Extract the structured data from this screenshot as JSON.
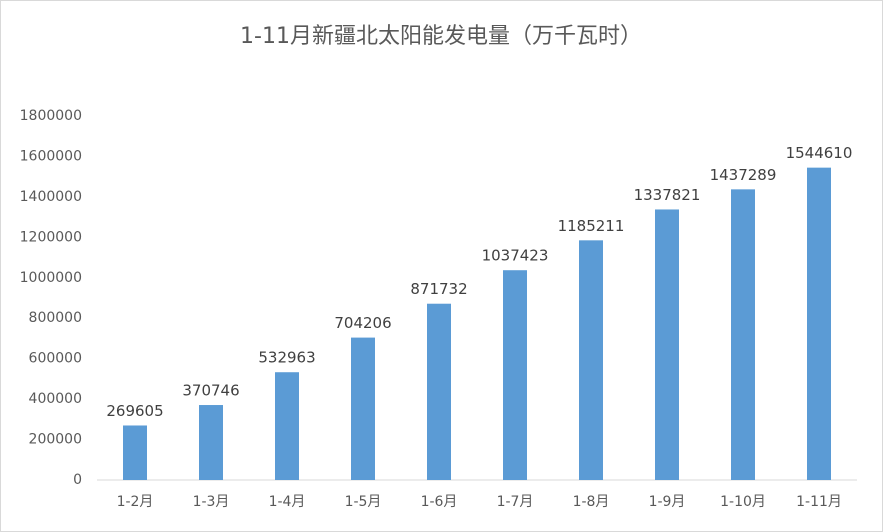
{
  "chart_data": {
    "type": "bar",
    "title": "1-11月新疆北太阳能发电量（万千瓦时）",
    "categories": [
      "1-2月",
      "1-3月",
      "1-4月",
      "1-5月",
      "1-6月",
      "1-7月",
      "1-8月",
      "1-9月",
      "1-10月",
      "1-11月"
    ],
    "values": [
      269605,
      370746,
      532963,
      704206,
      871732,
      1037423,
      1185211,
      1337821,
      1437289,
      1544610
    ],
    "color": "#5b9bd5",
    "ylim": [
      0,
      1800000
    ],
    "yticks": [
      0,
      200000,
      400000,
      600000,
      800000,
      1000000,
      1200000,
      1400000,
      1600000,
      1800000
    ],
    "grid": false
  }
}
